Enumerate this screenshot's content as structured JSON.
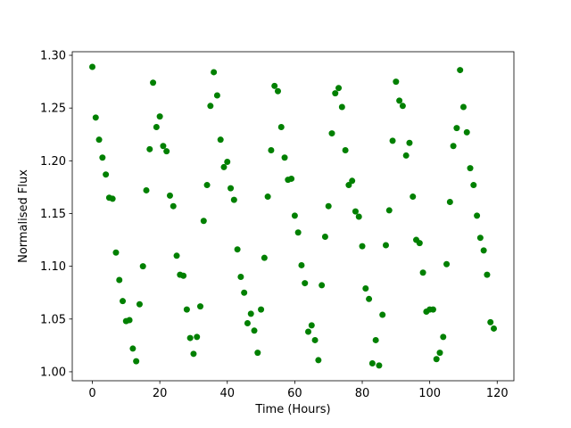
{
  "chart_data": {
    "type": "scatter",
    "xlabel": "Time (Hours)",
    "ylabel": "Normalised Flux",
    "color": "#008000",
    "x": [
      0,
      1,
      2,
      3,
      4,
      5,
      6,
      7,
      8,
      9,
      10,
      11,
      12,
      13,
      14,
      15,
      16,
      17,
      18,
      19,
      20,
      21,
      22,
      23,
      24,
      25,
      26,
      27,
      28,
      29,
      30,
      31,
      32,
      33,
      34,
      35,
      36,
      37,
      38,
      39,
      40,
      41,
      42,
      43,
      44,
      45,
      46,
      47,
      48,
      49,
      50,
      51,
      52,
      53,
      54,
      55,
      56,
      57,
      58,
      59,
      60,
      61,
      62,
      63,
      64,
      65,
      66,
      67,
      68,
      69,
      70,
      71,
      72,
      73,
      74,
      75,
      76,
      77,
      78,
      79,
      80,
      81,
      82,
      83,
      84,
      85,
      86,
      87,
      88,
      89,
      90,
      91,
      92,
      93,
      94,
      95,
      96,
      97,
      98,
      99,
      100,
      101,
      102,
      103,
      104,
      105,
      106,
      107,
      108,
      109,
      110,
      111,
      112,
      113,
      114,
      115,
      116,
      117,
      118,
      119
    ],
    "values": [
      1.289,
      1.241,
      1.22,
      1.203,
      1.187,
      1.165,
      1.164,
      1.113,
      1.087,
      1.067,
      1.048,
      1.049,
      1.022,
      1.01,
      1.064,
      1.1,
      1.172,
      1.211,
      1.274,
      1.232,
      1.242,
      1.214,
      1.209,
      1.167,
      1.157,
      1.11,
      1.092,
      1.091,
      1.059,
      1.032,
      1.017,
      1.033,
      1.062,
      1.143,
      1.177,
      1.252,
      1.284,
      1.262,
      1.22,
      1.194,
      1.199,
      1.174,
      1.163,
      1.116,
      1.09,
      1.075,
      1.046,
      1.055,
      1.039,
      1.018,
      1.059,
      1.108,
      1.166,
      1.21,
      1.271,
      1.266,
      1.232,
      1.203,
      1.182,
      1.183,
      1.148,
      1.132,
      1.101,
      1.084,
      1.038,
      1.044,
      1.03,
      1.011,
      1.082,
      1.128,
      1.157,
      1.226,
      1.264,
      1.269,
      1.251,
      1.21,
      1.177,
      1.181,
      1.152,
      1.147,
      1.119,
      1.079,
      1.069,
      1.008,
      1.03,
      1.006,
      1.054,
      1.12,
      1.153,
      1.219,
      1.275,
      1.257,
      1.252,
      1.205,
      1.217,
      1.166,
      1.125,
      1.122,
      1.094,
      1.057,
      1.059,
      1.059,
      1.012,
      1.018,
      1.033,
      1.102,
      1.161,
      1.214,
      1.231,
      1.286,
      1.251,
      1.227,
      1.193,
      1.177,
      1.148,
      1.127,
      1.115,
      1.092,
      1.047,
      1.041
    ],
    "xlim": [
      -5.95,
      124.95
    ],
    "ylim": [
      0.9915,
      1.3034
    ],
    "xticks": [
      0,
      20,
      40,
      60,
      80,
      100,
      120
    ],
    "yticks": [
      {
        "value": 1.0,
        "label": "1.00"
      },
      {
        "value": 1.05,
        "label": "1.05"
      },
      {
        "value": 1.1,
        "label": "1.10"
      },
      {
        "value": 1.15,
        "label": "1.15"
      },
      {
        "value": 1.2,
        "label": "1.20"
      },
      {
        "value": 1.25,
        "label": "1.25"
      },
      {
        "value": 1.3,
        "label": "1.30"
      }
    ]
  }
}
